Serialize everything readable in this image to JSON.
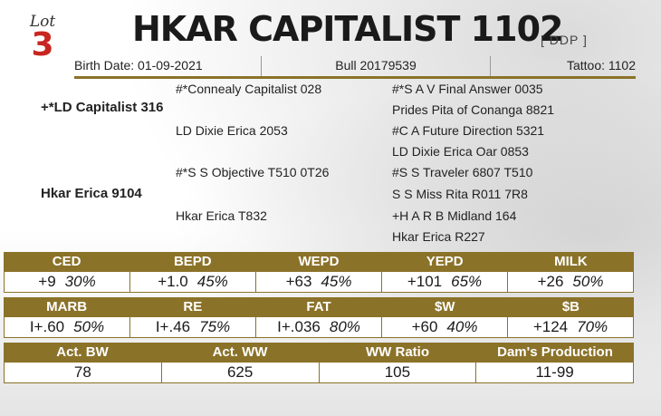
{
  "lot": {
    "word": "Lot",
    "number": "3"
  },
  "title": "HKAR CAPITALIST 1102",
  "registry": "[ DDP ]",
  "subline": {
    "birth_date": "Birth Date: 01-09-2021",
    "bull": "Bull 20179539",
    "tattoo": "Tattoo: 1102"
  },
  "pedigree": {
    "sire": "+*LD Capitalist 316",
    "sire_sire": "#*Connealy Capitalist 028",
    "sire_dam": "LD Dixie Erica 2053",
    "ss_sire": "#*S A V Final Answer 0035",
    "ss_dam": "Prides Pita of Conanga 8821",
    "sd_sire": "#C A Future Direction 5321",
    "sd_dam": "LD Dixie Erica Oar 0853",
    "dam": "Hkar Erica 9104",
    "dam_sire": "#*S S Objective T510 0T26",
    "dam_dam": "Hkar Erica T832",
    "ds_sire": "#S S Traveler 6807 T510",
    "ds_dam": "S S Miss Rita R011 7R8",
    "dd_sire": "+H A R B Midland 164",
    "dd_dam": "Hkar Erica R227"
  },
  "epd_row1": [
    {
      "label": "CED",
      "value": "+9",
      "pct": "30%"
    },
    {
      "label": "BEPD",
      "value": "+1.0",
      "pct": "45%"
    },
    {
      "label": "WEPD",
      "value": "+63",
      "pct": "45%"
    },
    {
      "label": "YEPD",
      "value": "+101",
      "pct": "65%"
    },
    {
      "label": "MILK",
      "value": "+26",
      "pct": "50%"
    }
  ],
  "epd_row2": [
    {
      "label": "MARB",
      "value": "I+.60",
      "pct": "50%"
    },
    {
      "label": "RE",
      "value": "I+.46",
      "pct": "75%"
    },
    {
      "label": "FAT",
      "value": "I+.036",
      "pct": "80%"
    },
    {
      "label": "$W",
      "value": "+60",
      "pct": "40%"
    },
    {
      "label": "$B",
      "value": "+124",
      "pct": "70%"
    }
  ],
  "perf_row": [
    {
      "label": "Act. BW",
      "value": "78"
    },
    {
      "label": "Act. WW",
      "value": "625"
    },
    {
      "label": "WW Ratio",
      "value": "105"
    },
    {
      "label": "Dam's Production",
      "value": "11-99"
    }
  ],
  "colors": {
    "header_gold": "#8b7229",
    "lot_red": "#c8261f"
  }
}
